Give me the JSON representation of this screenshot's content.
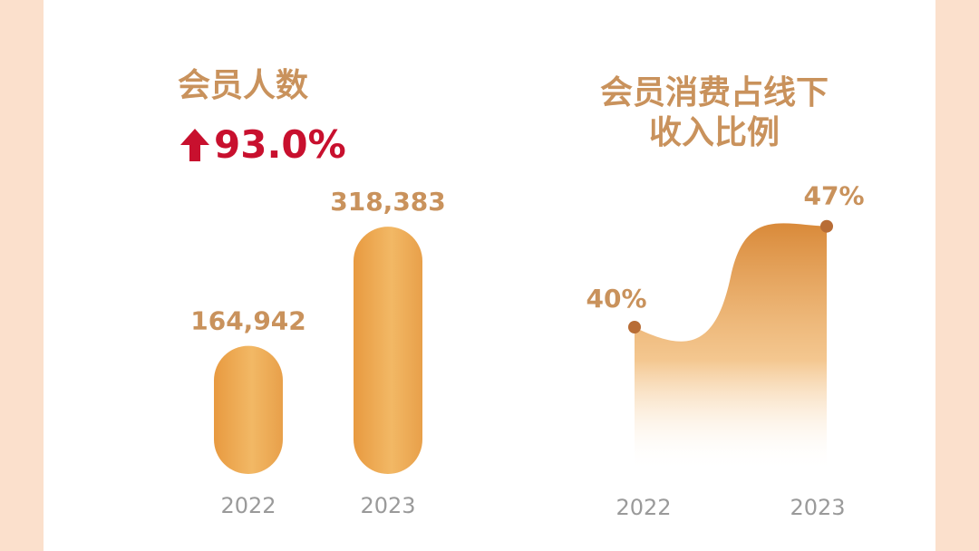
{
  "chart_data": [
    {
      "type": "bar",
      "title": "会员人数",
      "change": "93.0%",
      "categories": [
        "2022",
        "2023"
      ],
      "values": [
        164942,
        318383
      ],
      "value_labels": [
        "164,942",
        "318,383"
      ],
      "ylim": [
        0,
        350000
      ],
      "grid": false,
      "colors": {
        "bar": "#e8a04a",
        "bar_light": "#f2b865",
        "title": "#c9925c",
        "change": "#c8102e"
      }
    },
    {
      "type": "area",
      "title": "会员消费占线下收入比例",
      "title_lines": [
        "会员消费占线下",
        "收入比例"
      ],
      "categories": [
        "2022",
        "2023"
      ],
      "values": [
        40,
        47
      ],
      "value_labels": [
        "40%",
        "47%"
      ],
      "ylim": [
        30,
        50
      ],
      "grid": false,
      "colors": {
        "area_top": "#d98a3a",
        "point": "#b86d36"
      }
    }
  ]
}
